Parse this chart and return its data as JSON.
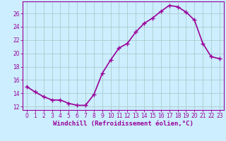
{
  "x": [
    0,
    1,
    2,
    3,
    4,
    5,
    6,
    7,
    8,
    9,
    10,
    11,
    12,
    13,
    14,
    15,
    16,
    17,
    18,
    19,
    20,
    21,
    22,
    23
  ],
  "y": [
    15,
    14.2,
    13.5,
    13.0,
    13.0,
    12.5,
    12.2,
    12.2,
    13.8,
    17.0,
    19.0,
    20.8,
    21.5,
    23.2,
    24.5,
    25.3,
    26.3,
    27.2,
    27.0,
    26.2,
    25.0,
    21.5,
    19.5,
    19.2
  ],
  "line_color": "#990099",
  "marker": "+",
  "marker_size": 4,
  "bg_color": "#cceeff",
  "grid_color": "#aacccc",
  "xlabel": "Windchill (Refroidissement éolien,°C)",
  "ylabel": "",
  "xlim": [
    -0.5,
    23.5
  ],
  "ylim": [
    11.5,
    27.8
  ],
  "yticks": [
    12,
    14,
    16,
    18,
    20,
    22,
    24,
    26
  ],
  "xticks": [
    0,
    1,
    2,
    3,
    4,
    5,
    6,
    7,
    8,
    9,
    10,
    11,
    12,
    13,
    14,
    15,
    16,
    17,
    18,
    19,
    20,
    21,
    22,
    23
  ],
  "tick_color": "#990099",
  "tick_fontsize": 5.5,
  "xlabel_fontsize": 6.5,
  "spine_color": "#990099",
  "line_width": 1.2
}
